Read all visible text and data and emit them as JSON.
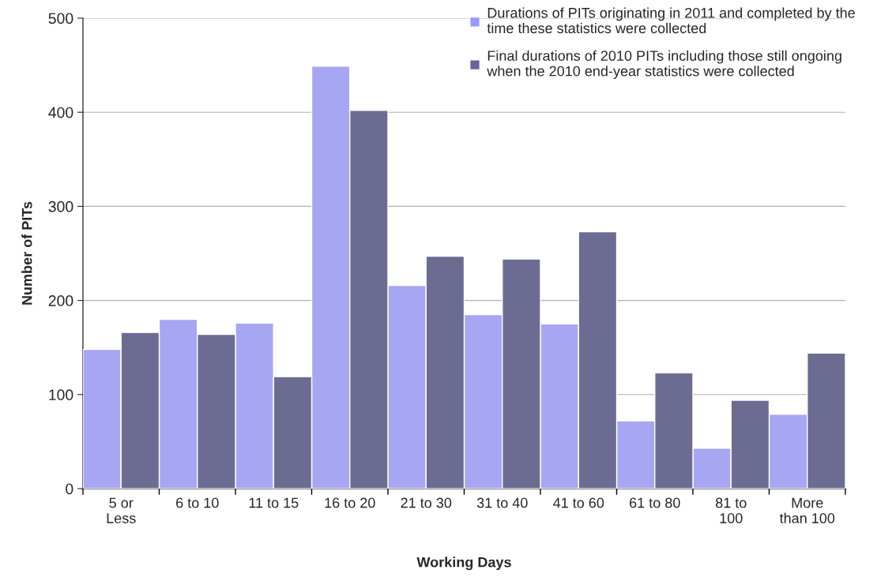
{
  "chart_data": {
    "type": "bar",
    "xlabel": "Working Days",
    "ylabel": "Number of PITs",
    "categories": [
      "5 or\nLess",
      "6 to 10",
      "11 to 15",
      "16 to 20",
      "21 to 30",
      "31 to 40",
      "41 to 60",
      "61 to 80",
      "81 to\n100",
      "More\nthan 100"
    ],
    "series": [
      {
        "name": "Durations of PITs originating in 2011 and completed by the\ntime these statistics were collected",
        "color": "#9999ff",
        "values": [
          148,
          180,
          176,
          449,
          216,
          185,
          175,
          72,
          43,
          79
        ]
      },
      {
        "name": "Final durations of 2010 PITs including those still ongoing\nwhen the 2010 end-year statistics were collected",
        "color": "#666699",
        "values": [
          166,
          164,
          119,
          402,
          247,
          244,
          273,
          123,
          94,
          144
        ]
      }
    ],
    "ylim": [
      0,
      500
    ],
    "yticks": [
      0,
      100,
      200,
      300,
      400,
      500
    ],
    "grid": "y",
    "legend": "top right"
  }
}
